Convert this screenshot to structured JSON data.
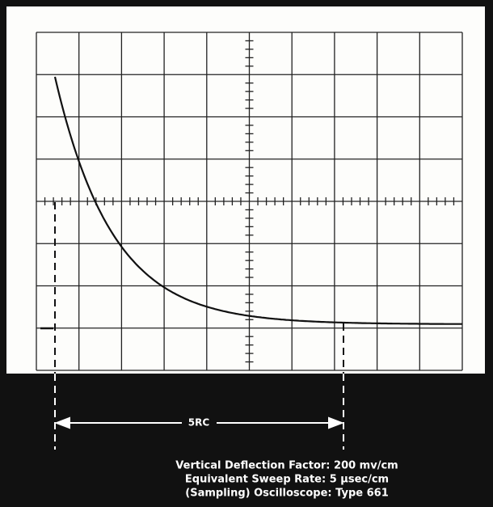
{
  "scale_label": "5RC",
  "caption": [
    "Vertical Deflection Factor:  200 mv/cm",
    "Equivalent Sweep Rate:  5 μsec/cm",
    "(Sampling)  Oscilloscope:  Type 661"
  ]
}
